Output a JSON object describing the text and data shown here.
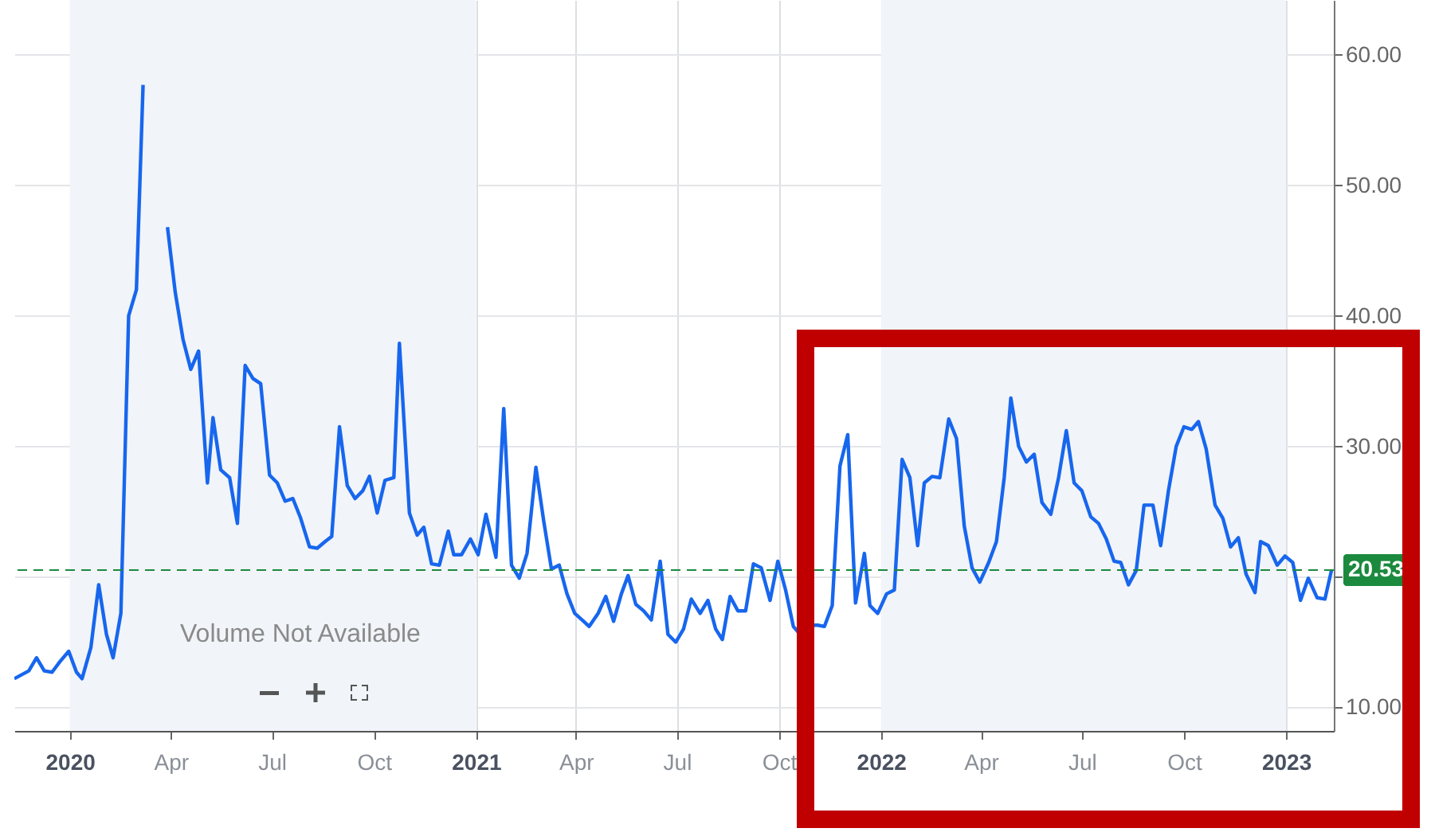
{
  "chart_data": {
    "type": "line",
    "color": "#1766ee",
    "x": [
      "2019-11-12",
      "2019-11-25",
      "2019-12-02",
      "2019-12-09",
      "2019-12-16",
      "2019-12-23",
      "2019-12-31",
      "2020-01-07",
      "2020-01-12",
      "2020-01-20",
      "2020-01-27",
      "2020-02-03",
      "2020-02-09",
      "2020-02-16",
      "2020-02-23",
      "2020-03-01",
      "2020-03-07",
      "2020-03-13",
      "2020-03-21",
      "2020-03-29",
      "2020-04-05",
      "2020-04-12",
      "2020-04-19",
      "2020-04-26",
      "2020-05-04",
      "2020-05-09",
      "2020-05-16",
      "2020-05-24",
      "2020-05-31",
      "2020-06-07",
      "2020-06-14",
      "2020-06-21",
      "2020-06-29",
      "2020-07-06",
      "2020-07-13",
      "2020-07-20",
      "2020-07-27",
      "2020-08-04",
      "2020-08-11",
      "2020-08-18",
      "2020-08-24",
      "2020-08-31",
      "2020-09-07",
      "2020-09-14",
      "2020-09-21",
      "2020-09-27",
      "2020-10-04",
      "2020-10-11",
      "2020-10-19",
      "2020-10-24",
      "2020-11-02",
      "2020-11-09",
      "2020-11-15",
      "2020-11-22",
      "2020-11-29",
      "2020-12-07",
      "2020-12-12",
      "2020-12-19",
      "2020-12-27",
      "2021-01-03",
      "2021-01-10",
      "2021-01-19",
      "2021-01-26",
      "2021-02-02",
      "2021-02-09",
      "2021-02-16",
      "2021-02-24",
      "2021-03-03",
      "2021-03-10",
      "2021-03-17",
      "2021-03-24",
      "2021-03-31",
      "2021-04-08",
      "2021-04-13",
      "2021-04-21",
      "2021-04-28",
      "2021-05-05",
      "2021-05-12",
      "2021-05-18",
      "2021-05-25",
      "2021-06-01",
      "2021-06-08",
      "2021-06-16",
      "2021-06-23",
      "2021-06-30",
      "2021-07-07",
      "2021-07-14",
      "2021-07-22",
      "2021-07-29",
      "2021-08-05",
      "2021-08-11",
      "2021-08-18",
      "2021-08-25",
      "2021-09-01",
      "2021-09-08",
      "2021-09-15",
      "2021-09-23",
      "2021-09-30",
      "2021-10-07",
      "2021-10-14",
      "2021-10-21",
      "2021-10-29",
      "2021-11-05",
      "2021-11-11",
      "2021-11-18",
      "2021-11-25",
      "2021-12-02",
      "2021-12-09",
      "2021-12-17",
      "2021-12-22",
      "2021-12-29",
      "2022-01-06",
      "2022-01-13",
      "2022-01-20",
      "2022-01-27",
      "2022-02-03",
      "2022-02-09",
      "2022-02-16",
      "2022-02-23",
      "2022-03-03",
      "2022-03-10",
      "2022-03-17",
      "2022-03-24",
      "2022-03-31",
      "2022-04-08",
      "2022-04-15",
      "2022-04-22",
      "2022-04-28",
      "2022-05-05",
      "2022-05-12",
      "2022-05-19",
      "2022-05-26",
      "2022-06-03",
      "2022-06-10",
      "2022-06-17",
      "2022-06-24",
      "2022-07-01",
      "2022-07-09",
      "2022-07-16",
      "2022-07-23",
      "2022-07-30",
      "2022-08-05",
      "2022-08-12",
      "2022-08-19",
      "2022-08-26",
      "2022-09-03",
      "2022-09-10",
      "2022-09-17",
      "2022-09-24",
      "2022-10-01",
      "2022-10-08",
      "2022-10-14",
      "2022-10-21",
      "2022-10-29",
      "2022-11-05",
      "2022-11-12",
      "2022-11-19",
      "2022-11-26",
      "2022-12-04",
      "2022-12-09",
      "2022-12-16",
      "2022-12-24",
      "2022-12-31",
      "2023-01-07",
      "2023-01-14",
      "2023-01-21",
      "2023-01-29",
      "2023-02-05",
      "2023-02-11"
    ],
    "values": [
      12.2,
      12.8,
      13.8,
      12.8,
      12.7,
      13.5,
      14.3,
      12.7,
      12.2,
      14.6,
      19.4,
      15.6,
      13.8,
      17.2,
      40.0,
      42.0,
      57.7,
      null,
      null,
      46.8,
      41.8,
      38.2,
      35.9,
      37.3,
      27.2,
      32.2,
      28.2,
      27.6,
      24.1,
      36.2,
      35.2,
      34.8,
      27.8,
      27.2,
      25.8,
      26.0,
      24.5,
      22.3,
      22.2,
      22.7,
      23.1,
      31.5,
      27.0,
      26.0,
      26.6,
      27.7,
      24.9,
      27.4,
      27.6,
      37.9,
      24.9,
      23.2,
      23.8,
      21.0,
      20.9,
      23.5,
      21.7,
      21.7,
      22.9,
      21.7,
      24.8,
      21.5,
      32.9,
      20.9,
      19.9,
      21.8,
      28.4,
      24.3,
      20.6,
      20.9,
      18.7,
      17.2,
      16.6,
      16.2,
      17.2,
      18.5,
      16.6,
      18.7,
      20.1,
      17.9,
      17.4,
      16.7,
      21.2,
      15.6,
      15.0,
      16.0,
      18.3,
      17.2,
      18.2,
      16.0,
      15.2,
      18.5,
      17.4,
      17.4,
      21.0,
      20.7,
      18.2,
      21.2,
      19.0,
      16.2,
      15.5,
      16.3,
      16.3,
      16.2,
      17.8,
      28.5,
      30.9,
      18.0,
      21.8,
      17.8,
      17.2,
      18.7,
      19.0,
      29.0,
      27.6,
      22.4,
      27.2,
      27.7,
      27.6,
      32.1,
      30.6,
      23.9,
      20.7,
      19.6,
      21.1,
      22.7,
      27.6,
      33.7,
      30.0,
      28.8,
      29.4,
      25.7,
      24.8,
      27.6,
      31.2,
      27.2,
      26.6,
      24.6,
      24.1,
      22.9,
      21.2,
      21.1,
      19.4,
      20.5,
      25.5,
      25.5,
      22.4,
      26.6,
      30.0,
      31.5,
      31.3,
      31.9,
      29.8,
      25.5,
      24.5,
      22.3,
      23.0,
      20.2,
      18.8,
      22.7,
      22.4,
      20.9,
      21.6,
      21.1,
      18.2,
      19.9,
      18.4,
      18.3,
      20.53
    ],
    "xlim": [
      "2019-11-12",
      "2023-02-13"
    ],
    "xticks": [
      {
        "value": "2020-01-01",
        "label": "2020"
      },
      {
        "value": "2020-04-01",
        "label": "Apr"
      },
      {
        "value": "2020-07-01",
        "label": "Jul"
      },
      {
        "value": "2020-10-01",
        "label": "Oct"
      },
      {
        "value": "2021-01-01",
        "label": "2021"
      },
      {
        "value": "2021-04-01",
        "label": "Apr"
      },
      {
        "value": "2021-07-01",
        "label": "Jul"
      },
      {
        "value": "2021-10-01",
        "label": "Oct"
      },
      {
        "value": "2022-01-01",
        "label": "2022"
      },
      {
        "value": "2022-04-01",
        "label": "Apr"
      },
      {
        "value": "2022-07-01",
        "label": "Jul"
      },
      {
        "value": "2022-10-01",
        "label": "Oct"
      },
      {
        "value": "2023-01-01",
        "label": "2023"
      }
    ],
    "ylim": [
      8.2,
      64.2
    ],
    "yticks": [
      {
        "value": 10,
        "label": "10.00"
      },
      {
        "value": 20,
        "label": null
      },
      {
        "value": 30,
        "label": "30.00"
      },
      {
        "value": 40,
        "label": "40.00"
      },
      {
        "value": 50,
        "label": "50.00"
      },
      {
        "value": 60,
        "label": "60.00"
      }
    ],
    "grid": true,
    "bands": [
      {
        "axis": "x",
        "from": "2020-01-01",
        "to": "2021-01-01",
        "color": "#f1f4f8"
      },
      {
        "axis": "x",
        "from": "2022-01-01",
        "to": "2023-01-01",
        "color": "#f1f4f8"
      }
    ],
    "ref_lines": [
      {
        "axis": "y",
        "value": 20.53,
        "label": "20.53",
        "color": "#1b8a3e",
        "line_style": "dashed"
      }
    ],
    "annotations": [
      "Volume Not Available"
    ]
  }
}
